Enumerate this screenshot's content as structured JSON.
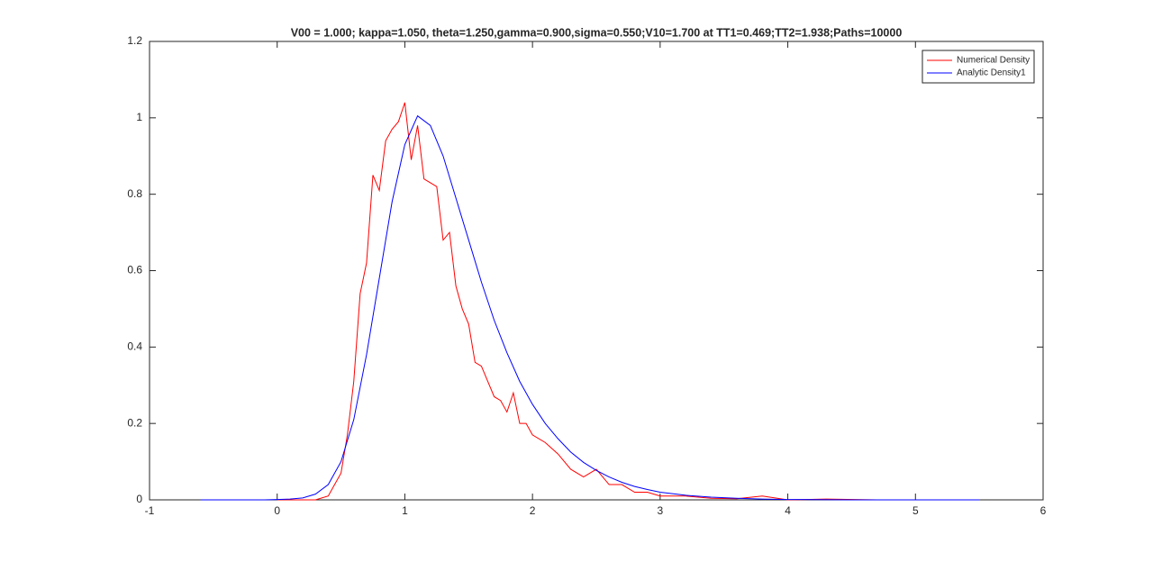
{
  "chart_data": {
    "type": "line",
    "title": "V00 = 1.000; kappa=1.050, theta=1.250,gamma=0.900,sigma=0.550;V10=1.700 at TT1=0.469;TT2=1.938;Paths=10000",
    "xlim": [
      -1,
      6
    ],
    "xticks": [
      -1,
      0,
      1,
      2,
      3,
      4,
      5,
      6
    ],
    "ylim": [
      0,
      1.2
    ],
    "yticks": [
      0,
      0.2,
      0.4,
      0.6,
      0.8,
      1,
      1.2
    ],
    "grid": false,
    "legend": "top-right",
    "series": [
      {
        "name": "Numerical Density",
        "color": "#ff0000",
        "x": [
          0,
          0.3,
          0.4,
          0.45,
          0.5,
          0.55,
          0.6,
          0.65,
          0.7,
          0.75,
          0.8,
          0.85,
          0.9,
          0.95,
          1.0,
          1.05,
          1.1,
          1.15,
          1.2,
          1.25,
          1.3,
          1.35,
          1.4,
          1.45,
          1.5,
          1.55,
          1.6,
          1.65,
          1.7,
          1.75,
          1.8,
          1.85,
          1.9,
          1.95,
          2.0,
          2.1,
          2.2,
          2.3,
          2.4,
          2.5,
          2.6,
          2.7,
          2.8,
          2.9,
          3.0,
          3.2,
          3.4,
          3.6,
          3.8,
          4.0,
          4.3,
          4.7,
          5.0,
          5.3
        ],
        "values": [
          0,
          0,
          0.01,
          0.04,
          0.07,
          0.17,
          0.31,
          0.54,
          0.62,
          0.85,
          0.81,
          0.94,
          0.97,
          0.99,
          1.04,
          0.89,
          0.98,
          0.84,
          0.83,
          0.82,
          0.68,
          0.7,
          0.56,
          0.5,
          0.46,
          0.36,
          0.35,
          0.31,
          0.27,
          0.26,
          0.23,
          0.28,
          0.2,
          0.2,
          0.17,
          0.15,
          0.12,
          0.08,
          0.06,
          0.08,
          0.04,
          0.04,
          0.02,
          0.02,
          0.01,
          0.01,
          0.004,
          0.003,
          0.01,
          0,
          0.002,
          0,
          0,
          0
        ]
      },
      {
        "name": "Analytic Density1",
        "color": "#0000ff",
        "x": [
          -0.6,
          -0.5,
          -0.4,
          -0.3,
          -0.2,
          -0.1,
          0,
          0.1,
          0.2,
          0.3,
          0.4,
          0.5,
          0.6,
          0.7,
          0.8,
          0.9,
          1.0,
          1.1,
          1.2,
          1.3,
          1.4,
          1.5,
          1.6,
          1.7,
          1.8,
          1.9,
          2.0,
          2.1,
          2.2,
          2.3,
          2.4,
          2.5,
          2.6,
          2.7,
          2.8,
          2.9,
          3.0,
          3.2,
          3.4,
          3.6,
          3.8,
          4.0,
          4.5,
          5.0,
          5.5
        ],
        "values": [
          0,
          0,
          0,
          0,
          0,
          0,
          0.001,
          0.002,
          0.005,
          0.015,
          0.04,
          0.1,
          0.21,
          0.38,
          0.58,
          0.78,
          0.93,
          1.005,
          0.98,
          0.9,
          0.79,
          0.68,
          0.57,
          0.47,
          0.385,
          0.31,
          0.25,
          0.2,
          0.16,
          0.125,
          0.098,
          0.077,
          0.06,
          0.046,
          0.035,
          0.027,
          0.02,
          0.012,
          0.007,
          0.004,
          0.002,
          0.001,
          0,
          0,
          0
        ]
      }
    ]
  }
}
